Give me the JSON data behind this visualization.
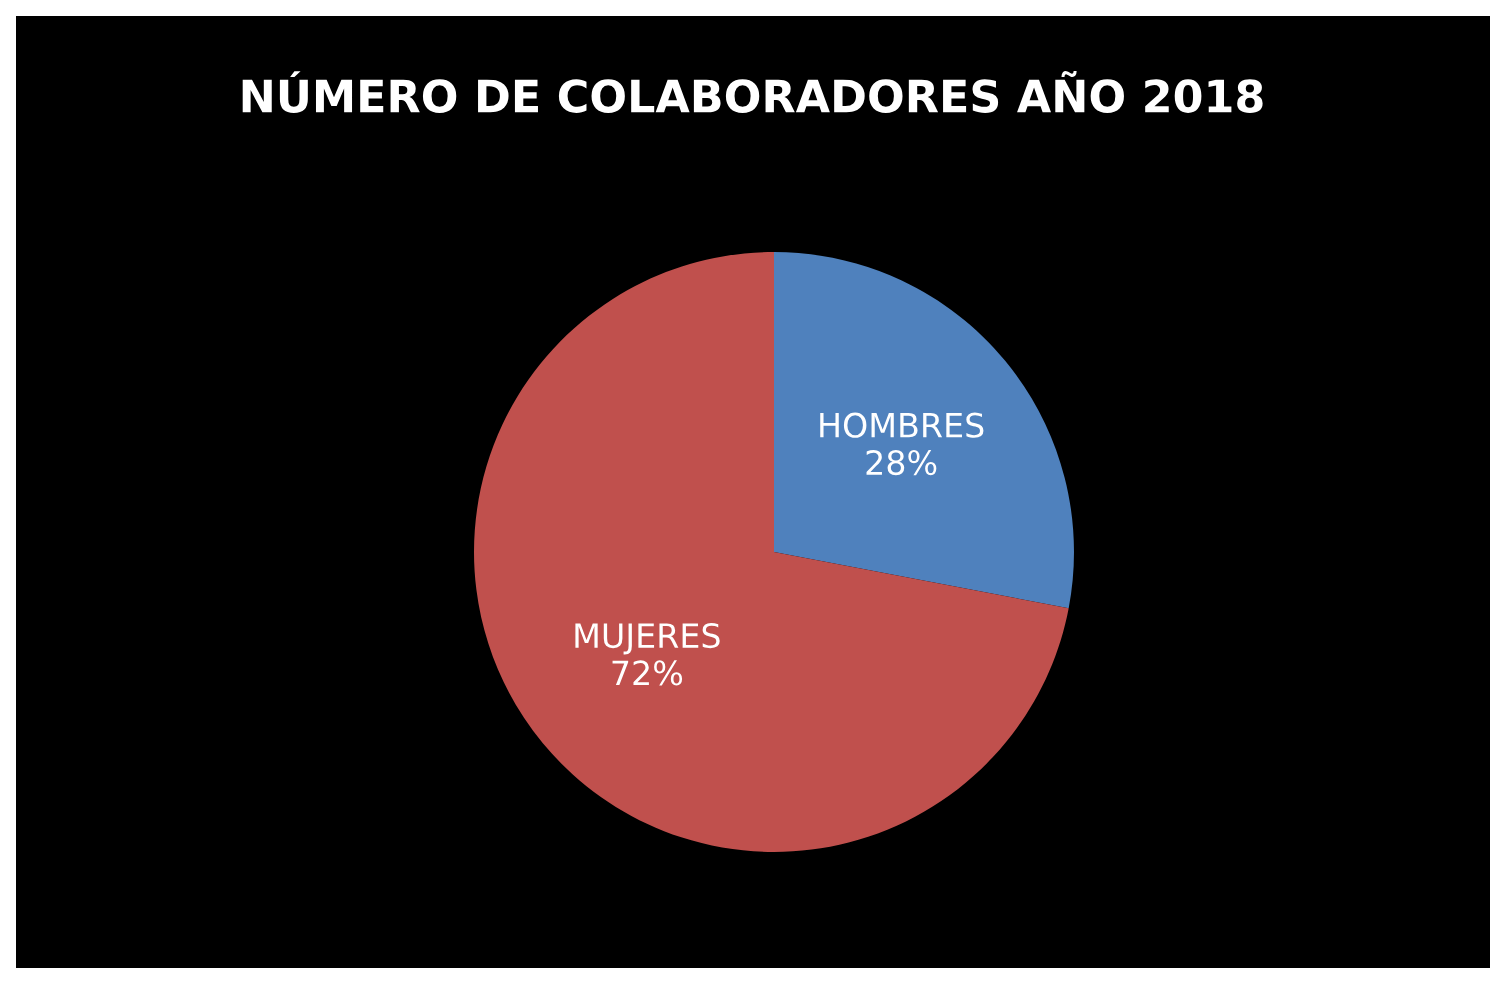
{
  "chart_data": {
    "type": "pie",
    "title": "NÚMERO DE COLABORADORES AÑO 2018",
    "categories": [
      "HOMBRES",
      "MUJERES"
    ],
    "values": [
      28,
      72
    ],
    "value_labels": [
      "28%",
      "72%"
    ],
    "colors": [
      "#4f81bd",
      "#c0504d"
    ]
  }
}
